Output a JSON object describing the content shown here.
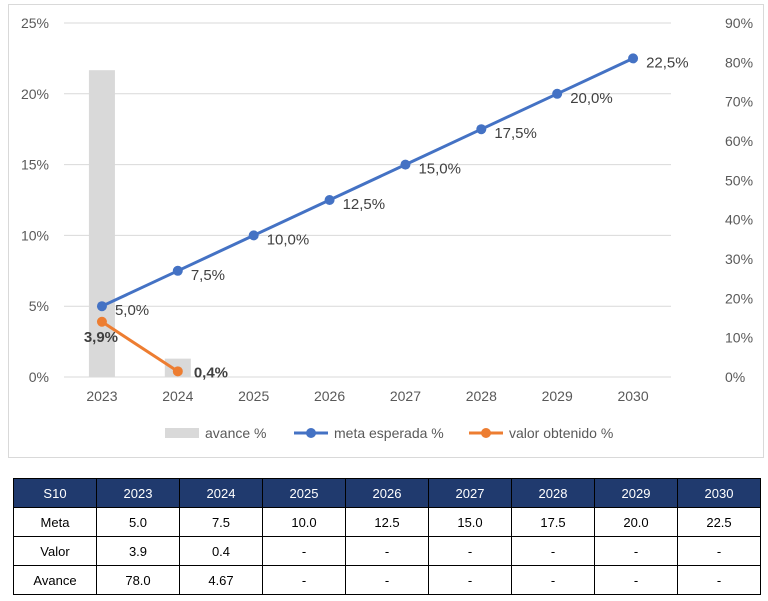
{
  "chart_data": {
    "type": "bar+line",
    "categories": [
      "2023",
      "2024",
      "2025",
      "2026",
      "2027",
      "2028",
      "2029",
      "2030"
    ],
    "y_left": {
      "ticks": [
        "0%",
        "5%",
        "10%",
        "15%",
        "20%",
        "25%"
      ],
      "range": [
        0,
        25
      ]
    },
    "y_right": {
      "ticks": [
        "0%",
        "10%",
        "20%",
        "30%",
        "40%",
        "50%",
        "60%",
        "70%",
        "80%",
        "90%"
      ],
      "range": [
        0,
        90
      ]
    },
    "grid": true,
    "legend_position": "bottom",
    "series": [
      {
        "name": "avance %",
        "type": "bar",
        "axis": "right",
        "color": "#d9d9d9",
        "values": [
          78.0,
          4.67,
          null,
          null,
          null,
          null,
          null,
          null
        ]
      },
      {
        "name": "meta esperada %",
        "type": "line",
        "axis": "left",
        "color": "#4472c4",
        "values": [
          5.0,
          7.5,
          10.0,
          12.5,
          15.0,
          17.5,
          20.0,
          22.5
        ],
        "labels": [
          "5,0%",
          "7,5%",
          "10,0%",
          "12,5%",
          "15,0%",
          "17,5%",
          "20,0%",
          "22,5%"
        ]
      },
      {
        "name": "valor obtenido %",
        "type": "line",
        "axis": "left",
        "color": "#ed7d31",
        "values": [
          3.9,
          0.4,
          null,
          null,
          null,
          null,
          null,
          null
        ],
        "labels": [
          "3,9%",
          "0,4%"
        ]
      }
    ]
  },
  "table": {
    "headers": [
      "S10",
      "2023",
      "2024",
      "2025",
      "2026",
      "2027",
      "2028",
      "2029",
      "2030"
    ],
    "rows": [
      [
        "Meta",
        "5.0",
        "7.5",
        "10.0",
        "12.5",
        "15.0",
        "17.5",
        "20.0",
        "22.5"
      ],
      [
        "Valor",
        "3.9",
        "0.4",
        "-",
        "-",
        "-",
        "-",
        "-",
        "-"
      ],
      [
        "Avance",
        "78.0",
        "4.67",
        "-",
        "-",
        "-",
        "-",
        "-",
        "-"
      ]
    ]
  }
}
